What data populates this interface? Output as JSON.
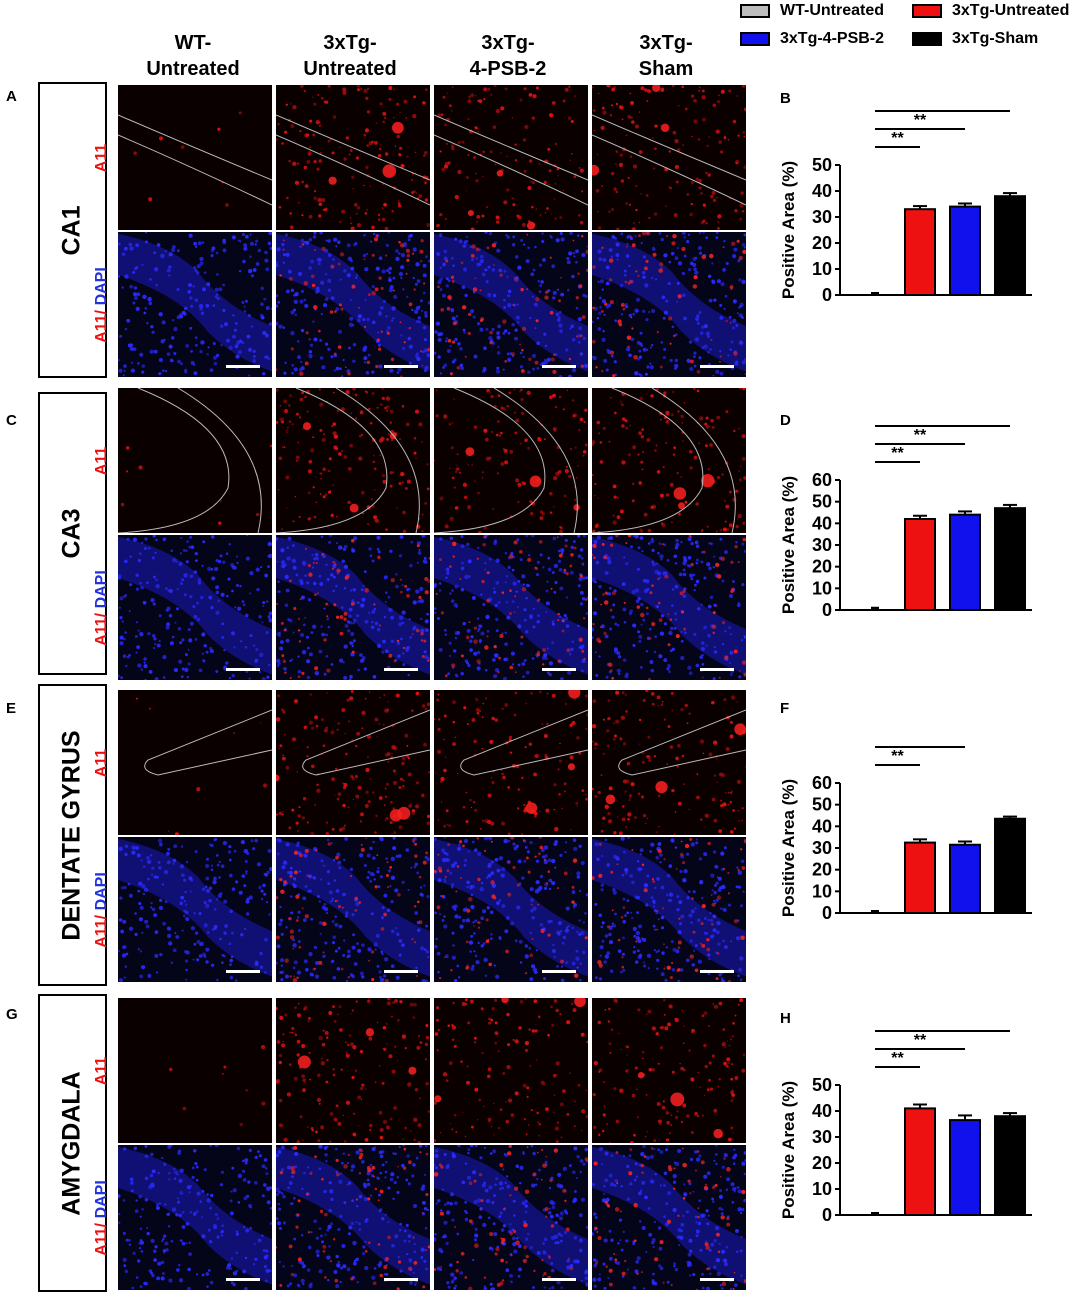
{
  "legend": [
    {
      "name": "WT-Untreated",
      "color": "#bdbdbd"
    },
    {
      "name": "3xTg-Untreated",
      "color": "#ee1111"
    },
    {
      "name": "3xTg-4-PSB-2",
      "color": "#1111ee"
    },
    {
      "name": "3xTg-Sham",
      "color": "#000000"
    }
  ],
  "column_headers": [
    "WT-\nUntreated",
    "3xTg-\nUntreated",
    "3xTg-\n4-PSB-2",
    "3xTg-\nSham"
  ],
  "row_labels": {
    "a11": "A11",
    "a11_prefix": "A11/",
    "dapi": " DAPI"
  },
  "panels": [
    {
      "letter": "A",
      "region": "CA1",
      "chart_letter": "B"
    },
    {
      "letter": "C",
      "region": "CA3",
      "chart_letter": "D"
    },
    {
      "letter": "E",
      "region": "DENTATE GYRUS",
      "chart_letter": "F"
    },
    {
      "letter": "G",
      "region": "AMYGDALA",
      "chart_letter": "H"
    }
  ],
  "significance_label": "**",
  "chart_data": [
    {
      "type": "bar",
      "panel": "B",
      "categories": [
        "WT-Untreated",
        "3xTg-Untreated",
        "3xTg-4-PSB-2",
        "3xTg-Sham"
      ],
      "values": [
        0.5,
        33,
        34,
        38
      ],
      "errors": [
        0.3,
        1.2,
        1.2,
        1.2
      ],
      "colors": [
        "#bdbdbd",
        "#ee1111",
        "#1111ee",
        "#000000"
      ],
      "ylabel": "Positive Area (%)",
      "ylim": [
        0,
        50
      ],
      "yticks": [
        0,
        10,
        20,
        30,
        40,
        50
      ]
    },
    {
      "type": "bar",
      "panel": "D",
      "categories": [
        "WT-Untreated",
        "3xTg-Untreated",
        "3xTg-4-PSB-2",
        "3xTg-Sham"
      ],
      "values": [
        1.5,
        42,
        44,
        47
      ],
      "errors": [
        0.5,
        1.5,
        1.5,
        1.5
      ],
      "colors": [
        "#bdbdbd",
        "#ee1111",
        "#1111ee",
        "#000000"
      ],
      "ylabel": "Positive Area (%)",
      "ylim": [
        0,
        60
      ],
      "yticks": [
        0,
        10,
        20,
        30,
        40,
        50,
        60
      ]
    },
    {
      "type": "bar",
      "panel": "F",
      "categories": [
        "WT-Untreated",
        "3xTg-Untreated",
        "3xTg-4-PSB-2",
        "3xTg-Sham"
      ],
      "values": [
        0.2,
        32.5,
        31.5,
        43.5
      ],
      "errors": [
        0.1,
        1.5,
        1.5,
        1.0
      ],
      "colors": [
        "#bdbdbd",
        "#ee1111",
        "#1111ee",
        "#000000"
      ],
      "ylabel": "Positive Area (%)",
      "ylim": [
        0,
        60
      ],
      "yticks": [
        0,
        10,
        20,
        30,
        40,
        50,
        60
      ]
    },
    {
      "type": "bar",
      "panel": "H",
      "categories": [
        "WT-Untreated",
        "3xTg-Untreated",
        "3xTg-4-PSB-2",
        "3xTg-Sham"
      ],
      "values": [
        0.7,
        41,
        36.5,
        38
      ],
      "errors": [
        0.3,
        1.5,
        1.8,
        1.2
      ],
      "colors": [
        "#bdbdbd",
        "#ee1111",
        "#1111ee",
        "#000000"
      ],
      "ylabel": "Positive Area (%)",
      "ylim": [
        0,
        50
      ],
      "yticks": [
        0,
        10,
        20,
        30,
        40,
        50
      ]
    }
  ]
}
